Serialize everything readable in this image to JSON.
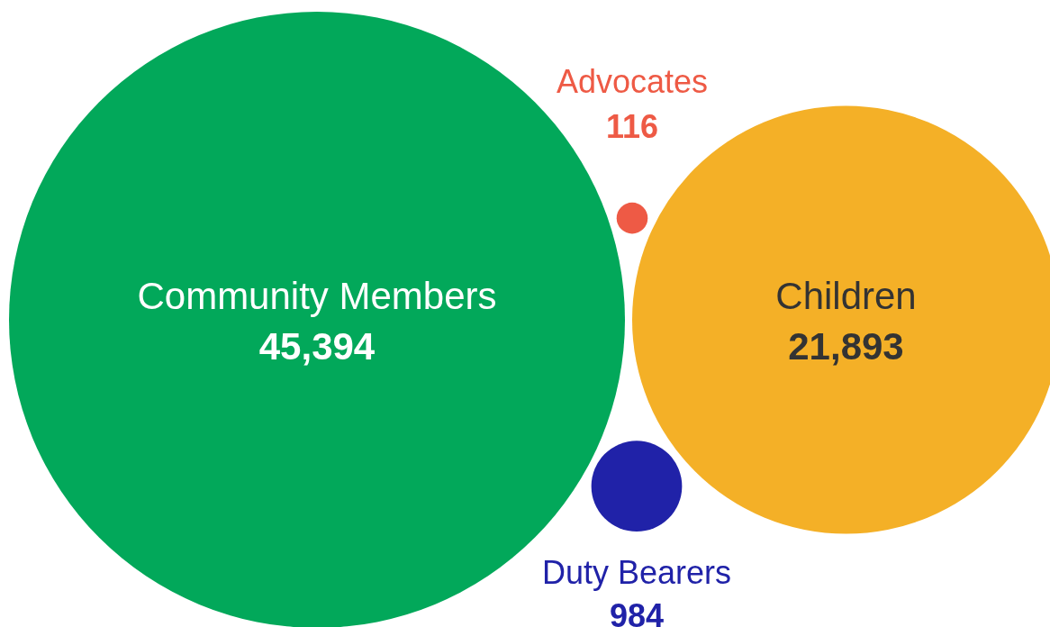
{
  "chart_data": {
    "type": "other",
    "categories": [
      "Community Members",
      "Advocates",
      "Children",
      "Duty Bearers"
    ],
    "values": [
      45394,
      116,
      21893,
      984
    ],
    "value_labels": [
      "45,394",
      "116",
      "21,893",
      "984"
    ],
    "colors": [
      "#02a85a",
      "#ee5a45",
      "#f4b027",
      "#2022a8"
    ]
  }
}
